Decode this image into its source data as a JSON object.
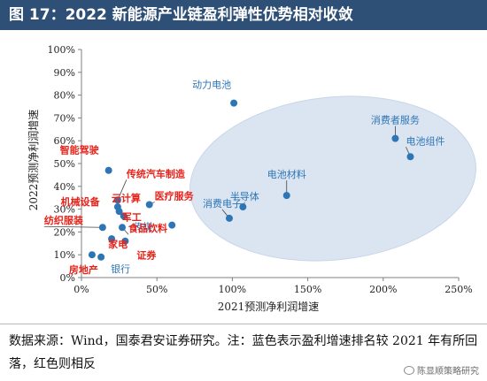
{
  "header": {
    "title": "图 17：2022 新能源产业链盈利弹性优势相对收敛"
  },
  "footer": {
    "source": "数据来源：Wind，国泰君安证券研究。注：蓝色表示盈利增速排名较 2021 年有所回落，红色则相反",
    "watermark": "陈显顺策略研究",
    "watermark_icon": "wechat-icon"
  },
  "colors": {
    "title_bar": "#2e4f76",
    "marker": "#2e75b6",
    "label_blue": "#2e75b6",
    "label_red": "#e8231a",
    "ellipse": "#dbe5f1"
  },
  "chart_data": {
    "type": "scatter",
    "xlabel": "2021预测净利润增速",
    "ylabel": "2022预测净利润增速",
    "xlim": [
      0,
      2.5
    ],
    "ylim": [
      0,
      1.0
    ],
    "xticks": [
      "0%",
      "50%",
      "100%",
      "150%",
      "200%",
      "250%"
    ],
    "yticks": [
      "0%",
      "10%",
      "20%",
      "30%",
      "40%",
      "50%",
      "60%",
      "70%",
      "80%",
      "90%",
      "100%"
    ],
    "grid": false,
    "points": [
      {
        "label": "动力电池",
        "x": 1.01,
        "y": 0.765,
        "group": "blue"
      },
      {
        "label": "消费者服务",
        "x": 2.08,
        "y": 0.61,
        "group": "blue"
      },
      {
        "label": "电池组件",
        "x": 2.18,
        "y": 0.53,
        "group": "blue"
      },
      {
        "label": "电池材料",
        "x": 1.36,
        "y": 0.36,
        "group": "blue"
      },
      {
        "label": "半导体",
        "x": 1.07,
        "y": 0.31,
        "group": "blue"
      },
      {
        "label": "消费电子",
        "x": 0.98,
        "y": 0.26,
        "group": "blue"
      },
      {
        "label": "医疗服务",
        "x": 0.45,
        "y": 0.32,
        "group": "red"
      },
      {
        "label": "传媒",
        "x": 0.6,
        "y": 0.23,
        "group": "blue"
      },
      {
        "label": "智能驾驶",
        "x": 0.18,
        "y": 0.47,
        "group": "red"
      },
      {
        "label": "传统汽车制造",
        "x": 0.24,
        "y": 0.34,
        "group": "red"
      },
      {
        "label": "云计算",
        "x": 0.24,
        "y": 0.31,
        "group": "red"
      },
      {
        "label": "机械设备",
        "x": 0.25,
        "y": 0.29,
        "group": "red"
      },
      {
        "label": "军工",
        "x": 0.28,
        "y": 0.27,
        "group": "red"
      },
      {
        "label": "食品饮料",
        "x": 0.27,
        "y": 0.22,
        "group": "red"
      },
      {
        "label": "纺织服装",
        "x": 0.14,
        "y": 0.22,
        "group": "red"
      },
      {
        "label": "家电",
        "x": 0.2,
        "y": 0.17,
        "group": "red"
      },
      {
        "label": "证券",
        "x": 0.29,
        "y": 0.16,
        "group": "red"
      },
      {
        "label": "房地产",
        "x": 0.07,
        "y": 0.1,
        "group": "red"
      },
      {
        "label": "银行",
        "x": 0.13,
        "y": 0.09,
        "group": "blue"
      }
    ]
  }
}
